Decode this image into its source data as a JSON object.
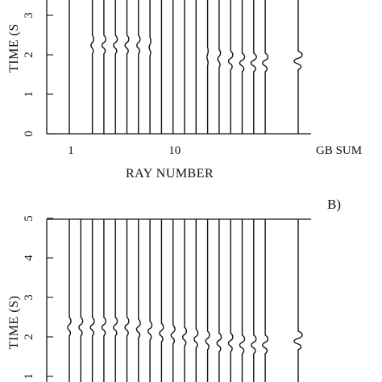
{
  "chart_data": [
    {
      "type": "seismogram",
      "panel_label": "",
      "ylabel": "TIME (S)",
      "ylabel_visible": "TIME (S",
      "xlabel": "RAY NUMBER",
      "ylim": [
        0,
        5
      ],
      "y_ticks": [
        0,
        1,
        2,
        3
      ],
      "x_ticks": [
        {
          "value": 1,
          "label": "1"
        },
        {
          "value": 10,
          "label": "10"
        }
      ],
      "sum_label": "GB SUM",
      "grid": false,
      "traces": [
        {
          "ray": 1,
          "arrival_time": 2.25,
          "amplitude": 0
        },
        {
          "ray": 3,
          "arrival_time": 2.25,
          "amplitude": 0.25
        },
        {
          "ray": 4,
          "arrival_time": 2.25,
          "amplitude": 0.35
        },
        {
          "ray": 5,
          "arrival_time": 2.25,
          "amplitude": 0.35
        },
        {
          "ray": 6,
          "arrival_time": 2.25,
          "amplitude": 0.35
        },
        {
          "ray": 7,
          "arrival_time": 2.25,
          "amplitude": 0.3
        },
        {
          "ray": 8,
          "arrival_time": 2.2,
          "amplitude": 0.15
        },
        {
          "ray": 9,
          "arrival_time": 2.15,
          "amplitude": 0
        },
        {
          "ray": 10,
          "arrival_time": 2.1,
          "amplitude": 0
        },
        {
          "ray": 11,
          "arrival_time": 2.05,
          "amplitude": 0
        },
        {
          "ray": 12,
          "arrival_time": 2.0,
          "amplitude": 0
        },
        {
          "ray": 13,
          "arrival_time": 1.95,
          "amplitude": 0.1
        },
        {
          "ray": 14,
          "arrival_time": 1.9,
          "amplitude": 0.25
        },
        {
          "ray": 15,
          "arrival_time": 1.85,
          "amplitude": 0.4
        },
        {
          "ray": 16,
          "arrival_time": 1.8,
          "amplitude": 0.45
        },
        {
          "ray": 17,
          "arrival_time": 1.8,
          "amplitude": 0.5
        },
        {
          "ray": 18,
          "arrival_time": 1.8,
          "amplitude": 0.5
        },
        {
          "ray": "GB SUM",
          "arrival_time": 1.85,
          "amplitude": 0.75
        }
      ]
    },
    {
      "type": "seismogram",
      "panel_label": "B)",
      "ylabel": "TIME (S)",
      "ylim": [
        0,
        5
      ],
      "y_ticks": [
        1,
        2,
        3,
        4,
        5
      ],
      "grid": false,
      "traces": [
        {
          "ray": 1,
          "arrival_time": 2.25,
          "amplitude": 0.3
        },
        {
          "ray": 2,
          "arrival_time": 2.25,
          "amplitude": 0.35
        },
        {
          "ray": 3,
          "arrival_time": 2.25,
          "amplitude": 0.35
        },
        {
          "ray": 4,
          "arrival_time": 2.25,
          "amplitude": 0.35
        },
        {
          "ray": 5,
          "arrival_time": 2.25,
          "amplitude": 0.35
        },
        {
          "ray": 6,
          "arrival_time": 2.25,
          "amplitude": 0.35
        },
        {
          "ray": 7,
          "arrival_time": 2.2,
          "amplitude": 0.35
        },
        {
          "ray": 8,
          "arrival_time": 2.15,
          "amplitude": 0.35
        },
        {
          "ray": 9,
          "arrival_time": 2.1,
          "amplitude": 0.35
        },
        {
          "ray": 10,
          "arrival_time": 2.05,
          "amplitude": 0.35
        },
        {
          "ray": 11,
          "arrival_time": 2.0,
          "amplitude": 0.35
        },
        {
          "ray": 12,
          "arrival_time": 1.95,
          "amplitude": 0.35
        },
        {
          "ray": 13,
          "arrival_time": 1.9,
          "amplitude": 0.35
        },
        {
          "ray": 14,
          "arrival_time": 1.85,
          "amplitude": 0.4
        },
        {
          "ray": 15,
          "arrival_time": 1.85,
          "amplitude": 0.4
        },
        {
          "ray": 16,
          "arrival_time": 1.8,
          "amplitude": 0.45
        },
        {
          "ray": 17,
          "arrival_time": 1.8,
          "amplitude": 0.45
        },
        {
          "ray": 18,
          "arrival_time": 1.8,
          "amplitude": 0.5
        },
        {
          "ray": "GB SUM",
          "arrival_time": 1.9,
          "amplitude": 0.75
        }
      ]
    }
  ]
}
